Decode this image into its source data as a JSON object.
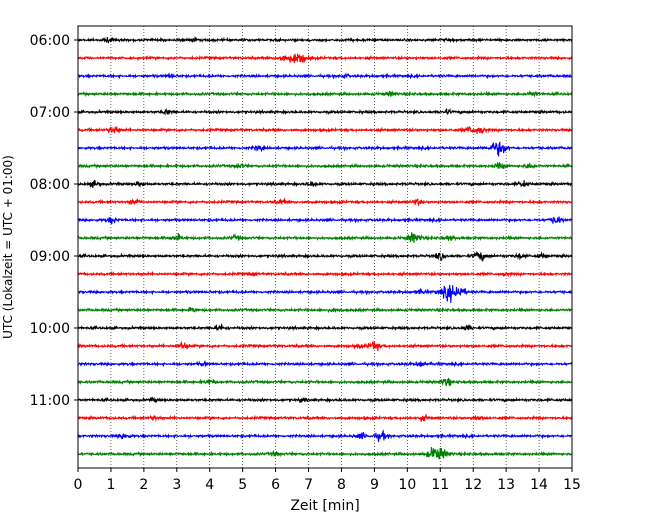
{
  "chart_data": {
    "type": "line",
    "title": "",
    "xlabel": "Zeit  [min]",
    "ylabel": "UTC (Lokalzeit = UTC + 01:00)",
    "xlim": [
      0,
      15
    ],
    "x_ticks": [
      "0",
      "1",
      "2",
      "3",
      "4",
      "5",
      "6",
      "7",
      "8",
      "9",
      "10",
      "11",
      "12",
      "13",
      "14",
      "15"
    ],
    "y_ticks": [
      {
        "label": "06:00",
        "trace": 0
      },
      {
        "label": "07:00",
        "trace": 4
      },
      {
        "label": "08:00",
        "trace": 8
      },
      {
        "label": "09:00",
        "trace": 12
      },
      {
        "label": "10:00",
        "trace": 16
      },
      {
        "label": "11:00",
        "trace": 20
      }
    ],
    "grid": "vertical-dotted",
    "trace_colors": [
      "#000000",
      "#ff0000",
      "#0000ff",
      "#008000"
    ],
    "traces": [
      {
        "start": "06:00",
        "color": "#000000",
        "events": [
          {
            "t": 0.9,
            "a": 1.5
          },
          {
            "t": 3.5,
            "a": 1.2
          }
        ]
      },
      {
        "start": "06:15",
        "color": "#ff0000",
        "events": [
          {
            "t": 6.25,
            "a": 3
          },
          {
            "t": 6.7,
            "a": 5
          }
        ]
      },
      {
        "start": "06:30",
        "color": "#0000ff",
        "events": [
          {
            "t": 2.8,
            "a": 1.2
          },
          {
            "t": 8.1,
            "a": 1.4
          }
        ]
      },
      {
        "start": "06:45",
        "color": "#008000",
        "events": [
          {
            "t": 9.5,
            "a": 1.6
          },
          {
            "t": 13.8,
            "a": 1.8
          }
        ]
      },
      {
        "start": "07:00",
        "color": "#000000",
        "events": [
          {
            "t": 2.7,
            "a": 1.8
          },
          {
            "t": 11.2,
            "a": 1.4
          }
        ]
      },
      {
        "start": "07:15",
        "color": "#ff0000",
        "events": [
          {
            "t": 1.1,
            "a": 3
          },
          {
            "t": 11.9,
            "a": 2.4
          },
          {
            "t": 12.2,
            "a": 3
          }
        ]
      },
      {
        "start": "07:30",
        "color": "#0000ff",
        "events": [
          {
            "t": 5.5,
            "a": 2
          },
          {
            "t": 12.7,
            "a": 4.5
          },
          {
            "t": 12.9,
            "a": 2.5
          }
        ]
      },
      {
        "start": "07:45",
        "color": "#008000",
        "events": [
          {
            "t": 4.9,
            "a": 1.5
          },
          {
            "t": 12.8,
            "a": 2.3
          },
          {
            "t": 13.7,
            "a": 2
          }
        ]
      },
      {
        "start": "08:00",
        "color": "#000000",
        "events": [
          {
            "t": 0.5,
            "a": 2.2
          },
          {
            "t": 1.9,
            "a": 1.8
          },
          {
            "t": 7.1,
            "a": 1.8
          },
          {
            "t": 13.5,
            "a": 2.2
          }
        ]
      },
      {
        "start": "08:15",
        "color": "#ff0000",
        "events": [
          {
            "t": 1.7,
            "a": 2.2
          },
          {
            "t": 6.2,
            "a": 1.5
          },
          {
            "t": 10.3,
            "a": 2
          }
        ]
      },
      {
        "start": "08:30",
        "color": "#0000ff",
        "events": [
          {
            "t": 1.0,
            "a": 2.5
          },
          {
            "t": 14.5,
            "a": 3
          }
        ]
      },
      {
        "start": "08:45",
        "color": "#008000",
        "events": [
          {
            "t": 3.0,
            "a": 2.4
          },
          {
            "t": 4.8,
            "a": 1.5
          },
          {
            "t": 10.2,
            "a": 4
          },
          {
            "t": 11.3,
            "a": 1.8
          }
        ]
      },
      {
        "start": "09:00",
        "color": "#000000",
        "events": [
          {
            "t": 11.0,
            "a": 2.5
          },
          {
            "t": 12.2,
            "a": 3.5
          },
          {
            "t": 13.4,
            "a": 1.8
          },
          {
            "t": 14.1,
            "a": 1.8
          }
        ]
      },
      {
        "start": "09:15",
        "color": "#ff0000",
        "events": [
          {
            "t": 5.3,
            "a": 1.2
          },
          {
            "t": 13.0,
            "a": 1.2
          }
        ]
      },
      {
        "start": "09:30",
        "color": "#0000ff",
        "events": [
          {
            "t": 10.4,
            "a": 1.8
          },
          {
            "t": 11.3,
            "a": 6
          },
          {
            "t": 11.6,
            "a": 3
          }
        ]
      },
      {
        "start": "09:45",
        "color": "#008000",
        "events": [
          {
            "t": 3.5,
            "a": 1.8
          },
          {
            "t": 7.8,
            "a": 1.4
          }
        ]
      },
      {
        "start": "10:00",
        "color": "#000000",
        "events": [
          {
            "t": 4.3,
            "a": 2.2
          },
          {
            "t": 11.8,
            "a": 2.2
          }
        ]
      },
      {
        "start": "10:15",
        "color": "#ff0000",
        "events": [
          {
            "t": 3.2,
            "a": 3
          },
          {
            "t": 8.5,
            "a": 1.4
          },
          {
            "t": 9.0,
            "a": 3.2
          }
        ]
      },
      {
        "start": "10:30",
        "color": "#0000ff",
        "events": [
          {
            "t": 3.8,
            "a": 1.5
          },
          {
            "t": 10.4,
            "a": 2.4
          }
        ]
      },
      {
        "start": "10:45",
        "color": "#008000",
        "events": [
          {
            "t": 4.0,
            "a": 2.2
          },
          {
            "t": 11.2,
            "a": 2.8
          }
        ]
      },
      {
        "start": "11:00",
        "color": "#000000",
        "events": [
          {
            "t": 2.3,
            "a": 1.2
          },
          {
            "t": 6.8,
            "a": 1.3
          }
        ]
      },
      {
        "start": "11:15",
        "color": "#ff0000",
        "events": [
          {
            "t": 2.3,
            "a": 1.6
          },
          {
            "t": 10.5,
            "a": 2
          },
          {
            "t": 12.1,
            "a": 2
          }
        ]
      },
      {
        "start": "11:30",
        "color": "#0000ff",
        "events": [
          {
            "t": 1.4,
            "a": 2.4
          },
          {
            "t": 8.6,
            "a": 2.4
          },
          {
            "t": 9.2,
            "a": 3.2
          }
        ]
      },
      {
        "start": "11:45",
        "color": "#008000",
        "events": [
          {
            "t": 6.0,
            "a": 1.6
          },
          {
            "t": 10.9,
            "a": 6
          }
        ]
      }
    ]
  }
}
